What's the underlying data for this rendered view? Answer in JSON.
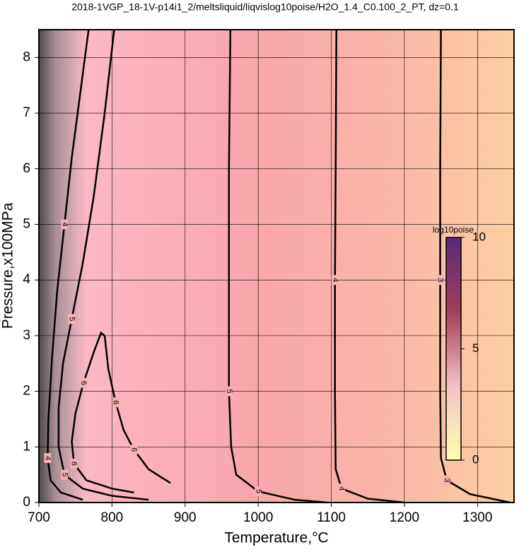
{
  "chart_data": {
    "type": "contour",
    "title": "2018-1VGP_18-1V-p14i1_2/meltsliquid/liqvislog10poise/H2O_1.4_C0.100_2_PT, dz=0.1",
    "x_label": "Temperature,°C",
    "y_label": "Pressure,x100MPa",
    "xlim": [
      700,
      1350
    ],
    "ylim": [
      0,
      8.5
    ],
    "xticks": [
      700,
      800,
      900,
      1000,
      1100,
      1200,
      1300
    ],
    "yticks": [
      0,
      1,
      2,
      3,
      4,
      5,
      6,
      7,
      8
    ],
    "grid": true,
    "contours": [
      {
        "level": 3,
        "x": [
          1250,
          1249,
          1249,
          1249,
          1250,
          1258,
          1290,
          1345
        ],
        "y": [
          8.5,
          6,
          4,
          2,
          0.8,
          0.4,
          0.15,
          0
        ]
      },
      {
        "level": 4,
        "x": [
          1107,
          1106,
          1105,
          1105,
          1106,
          1114,
          1150,
          1200
        ],
        "y": [
          8.5,
          6,
          4,
          2,
          0.6,
          0.25,
          0.07,
          0
        ]
      },
      {
        "level": 5,
        "x": [
          962,
          960,
          960,
          960,
          963,
          970,
          1000,
          1050,
          1095
        ],
        "y": [
          8.5,
          6,
          4,
          2,
          1,
          0.5,
          0.2,
          0.05,
          0
        ]
      },
      {
        "level": 5,
        "x": [
          803,
          790,
          775,
          760,
          745,
          733,
          727,
          727,
          735,
          760,
          800,
          850
        ],
        "y": [
          8.5,
          7,
          5.5,
          4.3,
          3.3,
          2.5,
          1.7,
          1,
          0.5,
          0.25,
          0.12,
          0.05
        ]
      },
      {
        "level": 4,
        "x": [
          768,
          755,
          745,
          735,
          725,
          718,
          713,
          712,
          716,
          730,
          760
        ],
        "y": [
          8.5,
          7.2,
          6.2,
          5,
          3.8,
          2.6,
          1.5,
          0.8,
          0.4,
          0.18,
          0.05
        ]
      },
      {
        "level": 6,
        "x": [
          790,
          785,
          775,
          761,
          750,
          745,
          748,
          765,
          800,
          830
        ],
        "y": [
          3.0,
          3.05,
          2.7,
          2.15,
          1.6,
          1.1,
          0.7,
          0.4,
          0.25,
          0.18
        ]
      },
      {
        "level": 6,
        "x": [
          790,
          795,
          805,
          816,
          830,
          850,
          880
        ],
        "y": [
          3.0,
          2.4,
          1.8,
          1.3,
          0.95,
          0.6,
          0.35
        ]
      }
    ],
    "colorbar": {
      "label": "log10poise",
      "lim": [
        0,
        10
      ],
      "ticks": [
        0,
        5,
        10
      ],
      "colors": [
        "#ffffb0",
        "#f4c0c8",
        "#a0405a",
        "#5a2a7a"
      ]
    }
  }
}
